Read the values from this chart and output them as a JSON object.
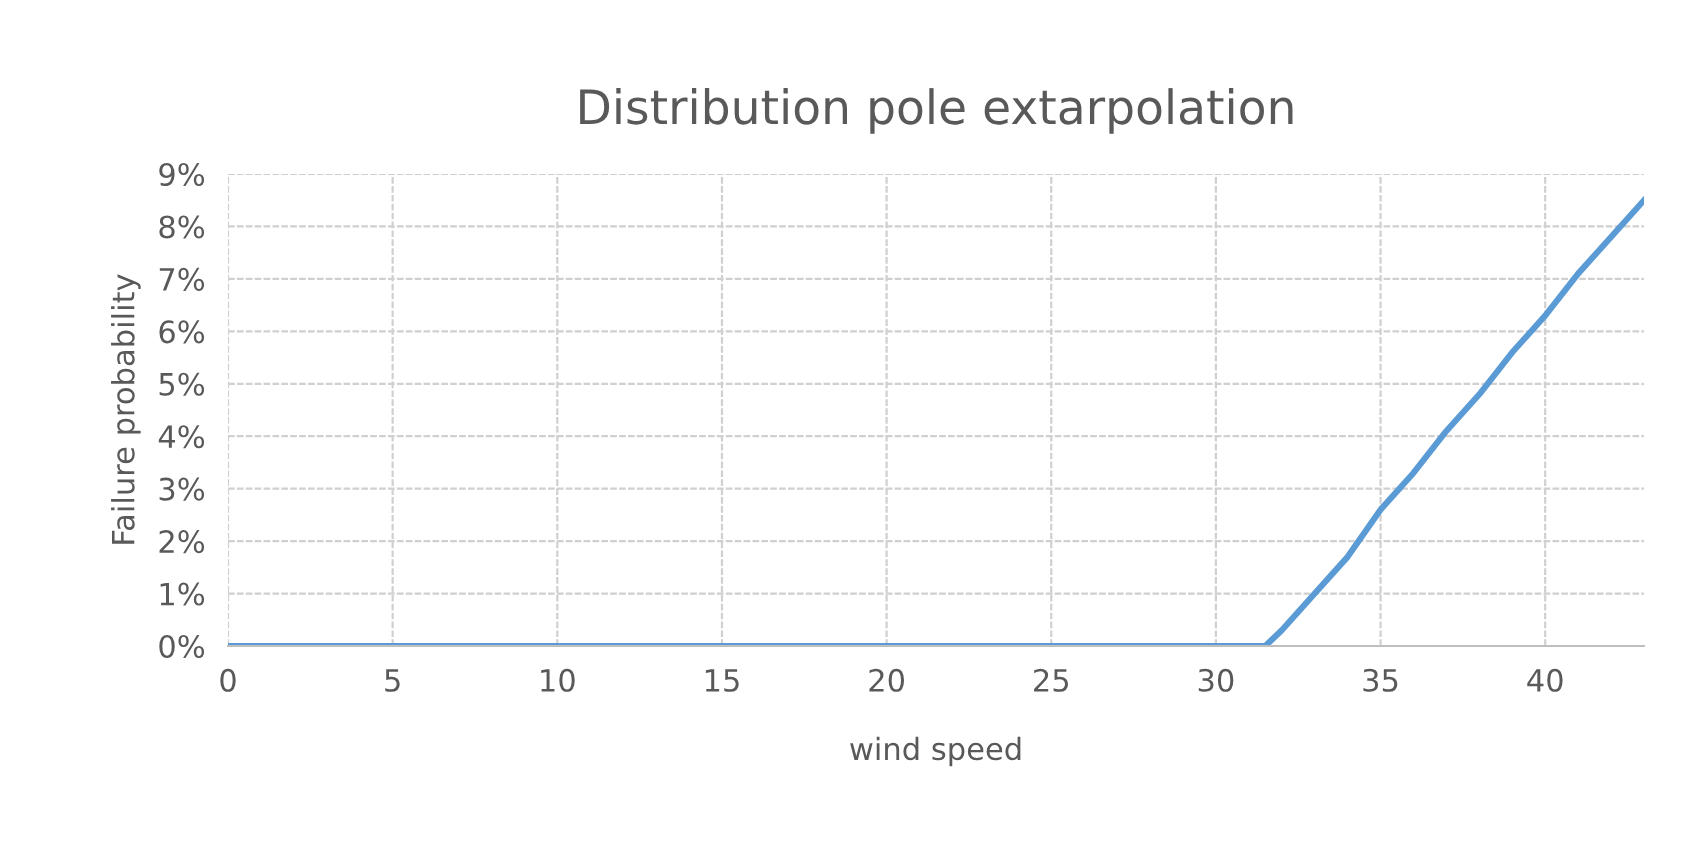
{
  "chart_data": {
    "type": "line",
    "title": "Distribution pole extarpolation",
    "xlabel": "wind speed",
    "ylabel": "Failure probability",
    "series": [
      {
        "color": "#5b9bd5",
        "x": [
          0,
          31.5,
          32,
          33,
          34,
          35,
          36,
          37,
          38,
          39,
          40,
          41,
          42,
          43
        ],
        "values": [
          0,
          0,
          0.3,
          1.0,
          1.7,
          2.6,
          3.3,
          4.1,
          4.8,
          5.6,
          6.3,
          7.1,
          7.8,
          8.5
        ]
      }
    ],
    "xlim": [
      0,
      43
    ],
    "xticks": [
      0,
      5,
      10,
      15,
      20,
      25,
      30,
      35,
      40
    ],
    "ylim": [
      0,
      9
    ],
    "yticks": [
      {
        "value": 0,
        "label": "0%"
      },
      {
        "value": 1,
        "label": "1%"
      },
      {
        "value": 2,
        "label": "2%"
      },
      {
        "value": 3,
        "label": "3%"
      },
      {
        "value": 4,
        "label": "4%"
      },
      {
        "value": 5,
        "label": "5%"
      },
      {
        "value": 6,
        "label": "6%"
      },
      {
        "value": 7,
        "label": "7%"
      },
      {
        "value": 8,
        "label": "8%"
      },
      {
        "value": 9,
        "label": "9%"
      }
    ],
    "grid": true,
    "marker": "none",
    "line_style": "solid"
  }
}
